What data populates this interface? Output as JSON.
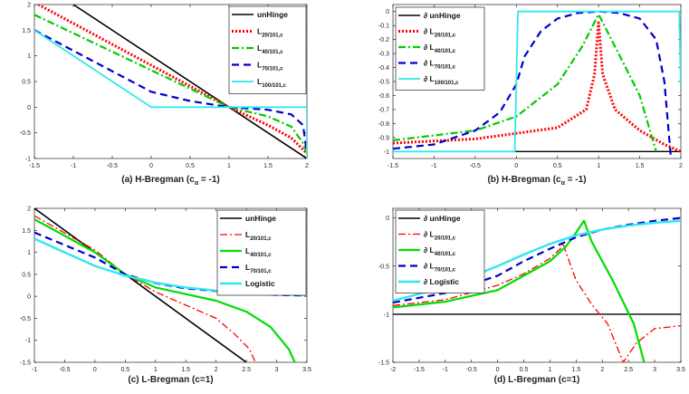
{
  "chart_data": [
    {
      "type": "line",
      "caption": "(a) H-Bregman (c",
      "caption_sub": "α",
      "caption_tail": " = -1)",
      "xlim": [
        -1.5,
        2
      ],
      "ylim": [
        -1,
        2
      ],
      "xticks": [
        "-1.5",
        "-1",
        "-0.5",
        "0",
        "0.5",
        "1",
        "1.5",
        "2"
      ],
      "yticks": [
        "-1",
        "-0.5",
        "0",
        "0.5",
        "1",
        "1.5",
        "2"
      ],
      "legend_location": "top-right",
      "series": [
        {
          "name": "unHinge",
          "label_main": "unHinge",
          "label_sub": "",
          "color": "#000000",
          "dash": "solid",
          "width": 1.6,
          "points": [
            [
              -1,
              2
            ],
            [
              2,
              -1
            ]
          ]
        },
        {
          "name": "L20/101,c",
          "label_main": "L",
          "label_sub": "20/101,c",
          "color": "#ff0000",
          "dash": "dotted",
          "width": 3,
          "points": [
            [
              -1.45,
              2
            ],
            [
              1,
              0
            ],
            [
              1.5,
              -0.35
            ],
            [
              1.8,
              -0.6
            ],
            [
              2,
              -0.9
            ]
          ]
        },
        {
          "name": "L40/101,c",
          "label_main": "L",
          "label_sub": "40/101,c",
          "color": "#00cc00",
          "dash": "dashdot",
          "width": 2.2,
          "points": [
            [
              -1.5,
              1.8
            ],
            [
              1,
              0
            ],
            [
              1.5,
              -0.18
            ],
            [
              1.8,
              -0.38
            ],
            [
              1.95,
              -0.7
            ],
            [
              2,
              -0.9
            ]
          ]
        },
        {
          "name": "L70/101,c",
          "label_main": "L",
          "label_sub": "70/101,c",
          "color": "#0000cc",
          "dash": "dashed",
          "width": 2.2,
          "points": [
            [
              -1.5,
              1.5
            ],
            [
              0,
              0.3
            ],
            [
              0.5,
              0.12
            ],
            [
              1,
              0
            ],
            [
              1.5,
              -0.05
            ],
            [
              1.8,
              -0.14
            ],
            [
              1.95,
              -0.35
            ],
            [
              2,
              -0.9
            ]
          ]
        },
        {
          "name": "L100/101,c",
          "label_main": "L",
          "label_sub": "100/101,c",
          "color": "#33e6f0",
          "dash": "solid",
          "width": 1.8,
          "points": [
            [
              -1.5,
              1.5
            ],
            [
              0,
              0
            ],
            [
              2,
              0
            ],
            [
              2,
              -1
            ]
          ]
        }
      ]
    },
    {
      "type": "line",
      "caption": "(b) H-Bregman (c",
      "caption_sub": "α",
      "caption_tail": " = -1)",
      "xlim": [
        -1.5,
        2
      ],
      "ylim": [
        -1.05,
        0.05
      ],
      "xticks": [
        "-1.5",
        "-1",
        "-0.5",
        "0",
        "0.5",
        "1",
        "1.5",
        "2"
      ],
      "yticks": [
        "-1",
        "-0.9",
        "-0.8",
        "-0.7",
        "-0.6",
        "-0.5",
        "-0.4",
        "-0.3",
        "-0.2",
        "-0.1",
        "0"
      ],
      "legend_location": "top-left",
      "series": [
        {
          "name": "∂ unHinge",
          "label_main": "∂ unHinge",
          "label_sub": "",
          "color": "#000000",
          "dash": "solid",
          "width": 1.4,
          "points": [
            [
              -1.5,
              -1
            ],
            [
              2,
              -1
            ]
          ]
        },
        {
          "name": "∂ L20/101,c",
          "label_main": "∂ L",
          "label_sub": "20/101,c",
          "color": "#ff0000",
          "dash": "dotted",
          "width": 3,
          "points": [
            [
              -1.5,
              -0.94
            ],
            [
              -0.5,
              -0.91
            ],
            [
              0.5,
              -0.83
            ],
            [
              0.85,
              -0.7
            ],
            [
              0.95,
              -0.45
            ],
            [
              1,
              -0.08
            ],
            [
              1.05,
              -0.45
            ],
            [
              1.2,
              -0.7
            ],
            [
              1.5,
              -0.85
            ],
            [
              1.8,
              -0.95
            ],
            [
              2,
              -1
            ]
          ]
        },
        {
          "name": "∂ L40/101,c",
          "label_main": "∂ L",
          "label_sub": "40/101,c",
          "color": "#00cc00",
          "dash": "dashdot",
          "width": 2.2,
          "points": [
            [
              -1.5,
              -0.92
            ],
            [
              -0.5,
              -0.85
            ],
            [
              0,
              -0.75
            ],
            [
              0.5,
              -0.52
            ],
            [
              0.8,
              -0.25
            ],
            [
              1,
              -0.02
            ],
            [
              1.2,
              -0.25
            ],
            [
              1.5,
              -0.6
            ],
            [
              1.7,
              -1
            ]
          ]
        },
        {
          "name": "∂ L70/101,c",
          "label_main": "∂ L",
          "label_sub": "70/101,c",
          "color": "#0000cc",
          "dash": "dashed",
          "width": 2.2,
          "points": [
            [
              -1.5,
              -0.98
            ],
            [
              -1,
              -0.95
            ],
            [
              -0.5,
              -0.85
            ],
            [
              -0.2,
              -0.72
            ],
            [
              0,
              -0.52
            ],
            [
              0.1,
              -0.32
            ],
            [
              0.3,
              -0.14
            ],
            [
              0.5,
              -0.05
            ],
            [
              0.75,
              -0.01
            ],
            [
              1,
              0
            ],
            [
              1.25,
              -0.01
            ],
            [
              1.5,
              -0.05
            ],
            [
              1.7,
              -0.2
            ],
            [
              1.8,
              -0.5
            ],
            [
              1.85,
              -0.85
            ],
            [
              1.88,
              -1.05
            ]
          ]
        },
        {
          "name": "∂ L100/101,c",
          "label_main": "∂ L",
          "label_sub": "100/101,c",
          "color": "#33e6f0",
          "dash": "solid",
          "width": 1.8,
          "points": [
            [
              -1.5,
              -1
            ],
            [
              -0.02,
              -1
            ],
            [
              0.02,
              0
            ],
            [
              1.98,
              0
            ],
            [
              2,
              -0.55
            ]
          ]
        }
      ]
    },
    {
      "type": "line",
      "caption": "(c) L-Bregman (c=1)",
      "caption_sub": "",
      "caption_tail": "",
      "xlim": [
        -1,
        3.5
      ],
      "ylim": [
        -1.5,
        2
      ],
      "xticks": [
        "-1",
        "-0.5",
        "0",
        "0.5",
        "1",
        "1.5",
        "2",
        "2.5",
        "3",
        "3.5"
      ],
      "yticks": [
        "-1.5",
        "-1",
        "-0.5",
        "0",
        "0.5",
        "1",
        "1.5",
        "2"
      ],
      "legend_location": "top-right",
      "series": [
        {
          "name": "unHinge",
          "label_main": "unHinge",
          "label_sub": "",
          "color": "#000000",
          "dash": "solid",
          "width": 1.6,
          "points": [
            [
              -1,
              2
            ],
            [
              2.5,
              -1.5
            ]
          ]
        },
        {
          "name": "L20/101,c",
          "label_main": "L",
          "label_sub": "20/101,c",
          "color": "#ff0000",
          "dash": "dashdot",
          "width": 1.3,
          "points": [
            [
              -1,
              1.83
            ],
            [
              0,
              1.05
            ],
            [
              0.5,
              0.5
            ],
            [
              1,
              0.1
            ],
            [
              1.5,
              -0.2
            ],
            [
              2,
              -0.5
            ],
            [
              2.3,
              -0.85
            ],
            [
              2.55,
              -1.2
            ],
            [
              2.65,
              -1.5
            ]
          ]
        },
        {
          "name": "L40/101,c",
          "label_main": "L",
          "label_sub": "40/101,c",
          "color": "#00dd00",
          "dash": "solid",
          "width": 2.2,
          "points": [
            [
              -1,
              1.75
            ],
            [
              0,
              1
            ],
            [
              0.5,
              0.5
            ],
            [
              1,
              0.2
            ],
            [
              1.5,
              0.05
            ],
            [
              2,
              -0.1
            ],
            [
              2.5,
              -0.35
            ],
            [
              2.9,
              -0.7
            ],
            [
              3.2,
              -1.2
            ],
            [
              3.3,
              -1.5
            ]
          ]
        },
        {
          "name": "L70/101,c",
          "label_main": "L",
          "label_sub": "70/101,c",
          "color": "#0000cc",
          "dash": "dashed",
          "width": 2.2,
          "points": [
            [
              -1,
              1.45
            ],
            [
              0,
              0.88
            ],
            [
              0.5,
              0.5
            ],
            [
              1,
              0.3
            ],
            [
              1.5,
              0.18
            ],
            [
              2,
              0.12
            ],
            [
              2.5,
              0.07
            ],
            [
              3,
              0.03
            ],
            [
              3.5,
              0.02
            ]
          ]
        },
        {
          "name": "Logistic",
          "label_main": "Logistic",
          "label_sub": "",
          "color": "#33e6f0",
          "dash": "solid",
          "width": 2.4,
          "points": [
            [
              -1,
              1.31
            ],
            [
              -0.5,
              1.0
            ],
            [
              0,
              0.69
            ],
            [
              0.5,
              0.47
            ],
            [
              1,
              0.31
            ],
            [
              1.5,
              0.2
            ],
            [
              2,
              0.13
            ],
            [
              2.5,
              0.08
            ],
            [
              3,
              0.05
            ],
            [
              3.5,
              0.03
            ]
          ]
        }
      ]
    },
    {
      "type": "line",
      "caption": "(d) L-Bregman (c=1)",
      "caption_sub": "",
      "caption_tail": "",
      "xlim": [
        -2,
        3.5
      ],
      "ylim": [
        -1.5,
        0.1
      ],
      "xticks": [
        "-2",
        "-1.5",
        "-1",
        "-0.5",
        "0",
        "0.5",
        "1",
        "1.5",
        "2",
        "2.5",
        "3",
        "3.5"
      ],
      "yticks": [
        "-1.5",
        "-1",
        "-0.5",
        "0"
      ],
      "legend_location": "top-left",
      "series": [
        {
          "name": "∂ unHinge",
          "label_main": "∂ unHinge",
          "label_sub": "",
          "color": "#000000",
          "dash": "solid",
          "width": 1.4,
          "points": [
            [
              -2,
              -1
            ],
            [
              3.5,
              -1
            ]
          ]
        },
        {
          "name": "∂ L20/101,c",
          "label_main": "∂ L",
          "label_sub": "20/101,c",
          "color": "#ff0000",
          "dash": "dashdot",
          "width": 1.3,
          "points": [
            [
              -2,
              -0.91
            ],
            [
              -1,
              -0.85
            ],
            [
              0,
              -0.7
            ],
            [
              0.5,
              -0.58
            ],
            [
              1,
              -0.42
            ],
            [
              1.2,
              -0.32
            ],
            [
              1.25,
              -0.26
            ],
            [
              1.3,
              -0.35
            ],
            [
              1.5,
              -0.65
            ],
            [
              1.8,
              -0.9
            ],
            [
              2.1,
              -1.1
            ],
            [
              2.4,
              -1.5
            ],
            [
              2.65,
              -1.3
            ],
            [
              3,
              -1.15
            ],
            [
              3.5,
              -1.12
            ]
          ]
        },
        {
          "name": "∂ L40/101,c",
          "label_main": "∂ L",
          "label_sub": "40/101,c",
          "color": "#00dd00",
          "dash": "solid",
          "width": 2.2,
          "points": [
            [
              -2,
              -0.93
            ],
            [
              -1,
              -0.87
            ],
            [
              0,
              -0.75
            ],
            [
              0.5,
              -0.6
            ],
            [
              1,
              -0.45
            ],
            [
              1.3,
              -0.3
            ],
            [
              1.5,
              -0.15
            ],
            [
              1.65,
              -0.03
            ],
            [
              1.8,
              -0.25
            ],
            [
              2.2,
              -0.65
            ],
            [
              2.6,
              -1.1
            ],
            [
              2.8,
              -1.5
            ]
          ]
        },
        {
          "name": "∂ L70/101,c",
          "label_main": "∂ L",
          "label_sub": "70/101,c",
          "color": "#0000cc",
          "dash": "dashed",
          "width": 2.2,
          "points": [
            [
              -2,
              -0.88
            ],
            [
              -1,
              -0.78
            ],
            [
              0,
              -0.6
            ],
            [
              0.5,
              -0.45
            ],
            [
              1,
              -0.32
            ],
            [
              1.5,
              -0.2
            ],
            [
              2,
              -0.12
            ],
            [
              2.5,
              -0.07
            ],
            [
              3,
              -0.03
            ],
            [
              3.5,
              0
            ]
          ]
        },
        {
          "name": "∂ Logistic",
          "label_main": "∂ Logistic",
          "label_sub": "",
          "color": "#33e6f0",
          "dash": "solid",
          "width": 2.4,
          "points": [
            [
              -2,
              -0.86
            ],
            [
              -1,
              -0.72
            ],
            [
              0,
              -0.5
            ],
            [
              0.5,
              -0.38
            ],
            [
              1,
              -0.27
            ],
            [
              1.5,
              -0.18
            ],
            [
              2,
              -0.12
            ],
            [
              2.5,
              -0.08
            ],
            [
              3,
              -0.05
            ],
            [
              3.5,
              -0.03
            ]
          ]
        }
      ]
    }
  ]
}
